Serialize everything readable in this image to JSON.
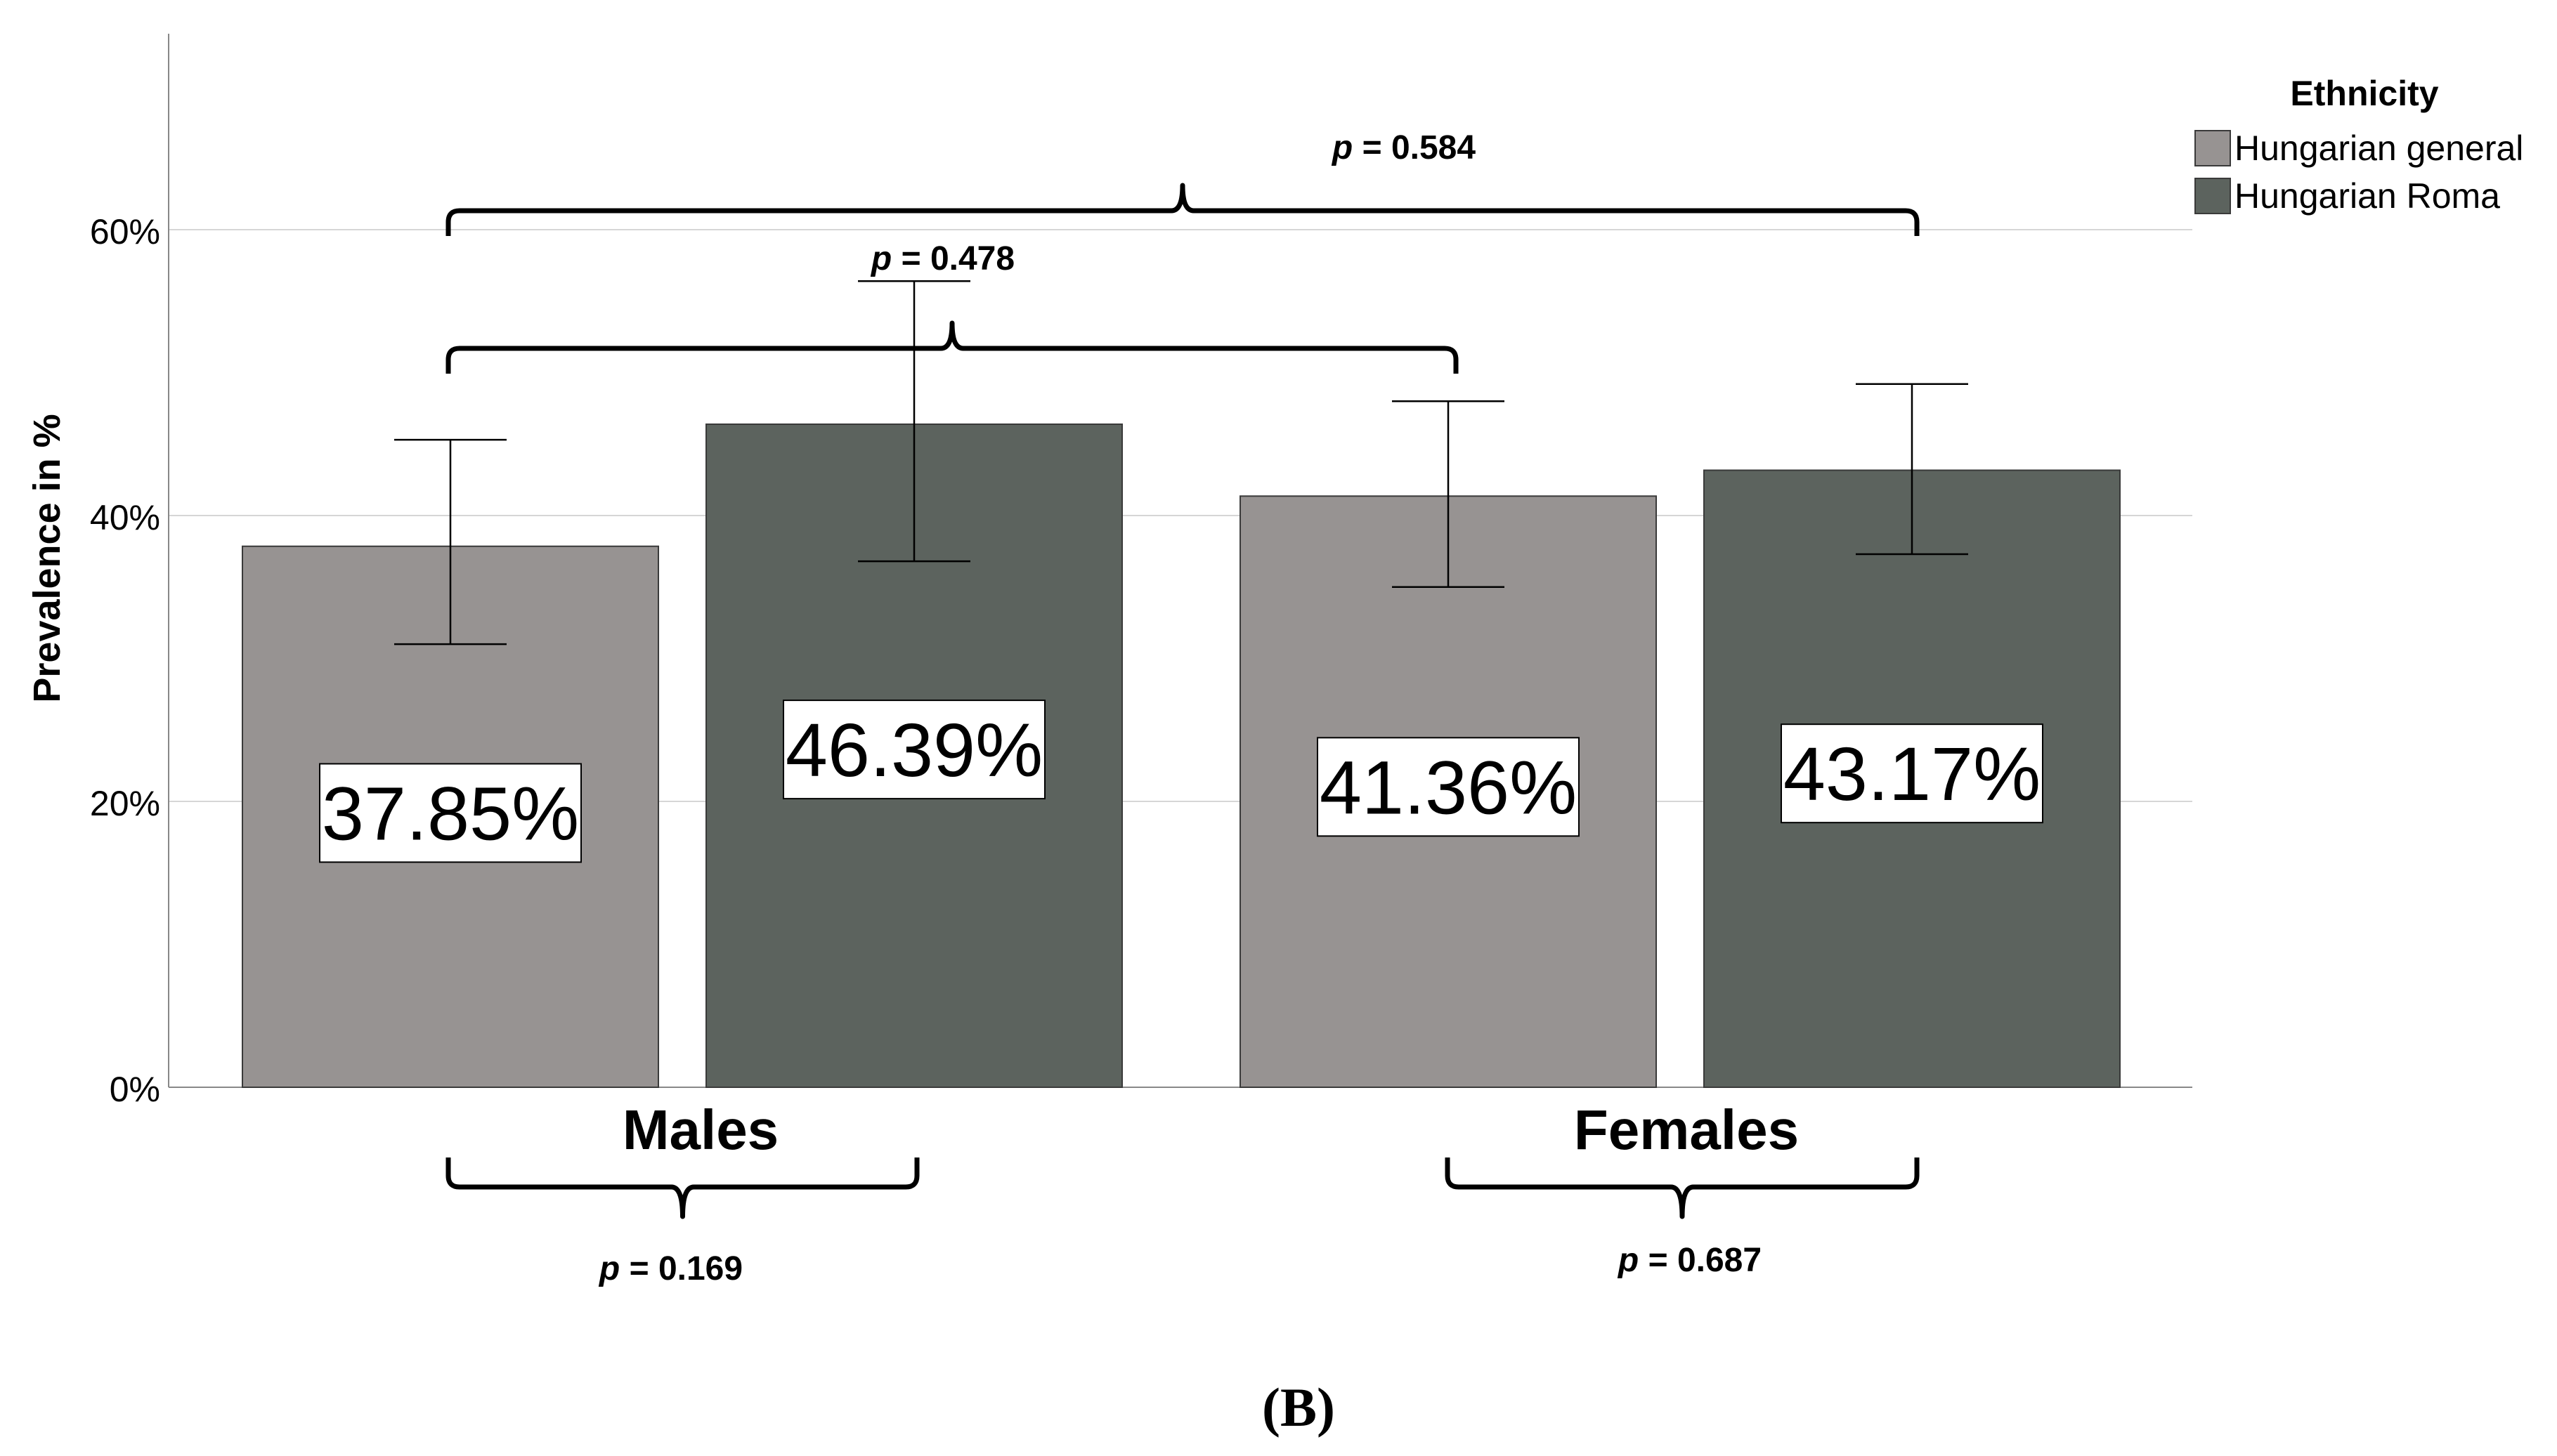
{
  "chart_data": {
    "type": "bar",
    "ylabel": "Prevalence in %",
    "ylim": [
      0,
      74
    ],
    "yticks": [
      0,
      20,
      40,
      60
    ],
    "ytick_labels": [
      "0%",
      "20%",
      "40%",
      "60%"
    ],
    "grid": true,
    "categories": [
      "Males",
      "Females"
    ],
    "legend": {
      "title": "Ethnicity",
      "placement": "top-right",
      "entries": [
        "Hungarian general",
        "Hungarian Roma"
      ]
    },
    "series": [
      {
        "name": "Hungarian general",
        "color": "#979392",
        "values": [
          37.85,
          41.36
        ],
        "value_labels": [
          "37.85%",
          "41.36%"
        ],
        "ci_low": [
          31.0,
          35.0
        ],
        "ci_high": [
          45.3,
          48.0
        ]
      },
      {
        "name": "Hungarian Roma",
        "color": "#5c635e",
        "values": [
          46.39,
          43.17
        ],
        "value_labels": [
          "46.39%",
          "43.17%"
        ],
        "ci_low": [
          36.8,
          37.3
        ],
        "ci_high": [
          56.4,
          49.2
        ]
      }
    ],
    "significance": {
      "p_symbol": "p",
      "males": " = 0.169",
      "females": " = 0.687",
      "general": " = 0.478",
      "roma": " = 0.584"
    },
    "panel_label": "(B)"
  }
}
